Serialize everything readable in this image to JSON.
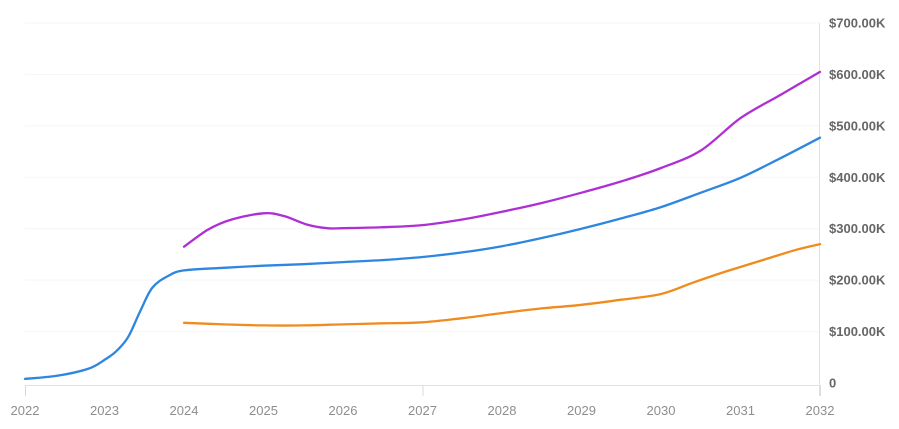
{
  "chart_data": {
    "type": "line",
    "title": "",
    "legend": null,
    "grid": true,
    "x_axis": {
      "min": 2022,
      "max": 2032,
      "tick_labels": [
        "2022",
        "2023",
        "2024",
        "2025",
        "2026",
        "2027",
        "2028",
        "2029",
        "2030",
        "2031",
        "2032"
      ],
      "tick_mark_years": [
        2022,
        2027,
        2032
      ]
    },
    "y_axis": {
      "position": "right",
      "min": 0,
      "max": 700000,
      "ticks": [
        {
          "value": 0,
          "label": "0"
        },
        {
          "value": 100000,
          "label": "$100.00K"
        },
        {
          "value": 200000,
          "label": "$200.00K"
        },
        {
          "value": 300000,
          "label": "$300.00K"
        },
        {
          "value": 400000,
          "label": "$400.00K"
        },
        {
          "value": 500000,
          "label": "$500.00K"
        },
        {
          "value": 600000,
          "label": "$600.00K"
        },
        {
          "value": 700000,
          "label": "$700.00K"
        }
      ]
    },
    "series": [
      {
        "name": "blue-series",
        "color": "#2e86e0",
        "points": [
          [
            2022,
            8000
          ],
          [
            2022.4,
            14000
          ],
          [
            2022.8,
            28000
          ],
          [
            2023,
            45000
          ],
          [
            2023.15,
            62000
          ],
          [
            2023.3,
            90000
          ],
          [
            2023.45,
            140000
          ],
          [
            2023.6,
            185000
          ],
          [
            2023.8,
            208000
          ],
          [
            2024,
            219000
          ],
          [
            2024.5,
            224000
          ],
          [
            2025,
            228000
          ],
          [
            2025.5,
            231000
          ],
          [
            2026,
            235000
          ],
          [
            2026.5,
            239000
          ],
          [
            2027,
            245000
          ],
          [
            2027.5,
            254000
          ],
          [
            2028,
            266000
          ],
          [
            2028.5,
            282000
          ],
          [
            2029,
            300000
          ],
          [
            2029.5,
            320000
          ],
          [
            2030,
            342000
          ],
          [
            2030.5,
            370000
          ],
          [
            2031,
            399000
          ],
          [
            2031.5,
            437000
          ],
          [
            2032,
            477000
          ]
        ]
      },
      {
        "name": "purple-series",
        "color": "#ae2fd4",
        "points": [
          [
            2024,
            265000
          ],
          [
            2024.3,
            298000
          ],
          [
            2024.6,
            318000
          ],
          [
            2025,
            330000
          ],
          [
            2025.25,
            325000
          ],
          [
            2025.55,
            308000
          ],
          [
            2025.8,
            301000
          ],
          [
            2026,
            301000
          ],
          [
            2026.5,
            303000
          ],
          [
            2027,
            307000
          ],
          [
            2027.5,
            318000
          ],
          [
            2028,
            333000
          ],
          [
            2028.5,
            350000
          ],
          [
            2029,
            370000
          ],
          [
            2029.5,
            392000
          ],
          [
            2030,
            418000
          ],
          [
            2030.5,
            452000
          ],
          [
            2031,
            515000
          ],
          [
            2031.5,
            560000
          ],
          [
            2032,
            605000
          ]
        ]
      },
      {
        "name": "orange-series",
        "color": "#f08b1e",
        "points": [
          [
            2024,
            117000
          ],
          [
            2024.5,
            114000
          ],
          [
            2025,
            112000
          ],
          [
            2025.5,
            112000
          ],
          [
            2026,
            114000
          ],
          [
            2026.5,
            116000
          ],
          [
            2027,
            118000
          ],
          [
            2027.5,
            126000
          ],
          [
            2028,
            136000
          ],
          [
            2028.5,
            145000
          ],
          [
            2029,
            152000
          ],
          [
            2029.5,
            162000
          ],
          [
            2030,
            173000
          ],
          [
            2030.4,
            195000
          ],
          [
            2030.8,
            216000
          ],
          [
            2031.3,
            240000
          ],
          [
            2031.7,
            259000
          ],
          [
            2032,
            270000
          ]
        ]
      }
    ],
    "colors": {
      "gridline": "#f5f5f5",
      "axis_line": "#e2e2e2",
      "tick_mark": "#d9d9d9",
      "y_label": "#666666",
      "x_label": "#8e8e8e",
      "background": "#ffffff"
    }
  }
}
